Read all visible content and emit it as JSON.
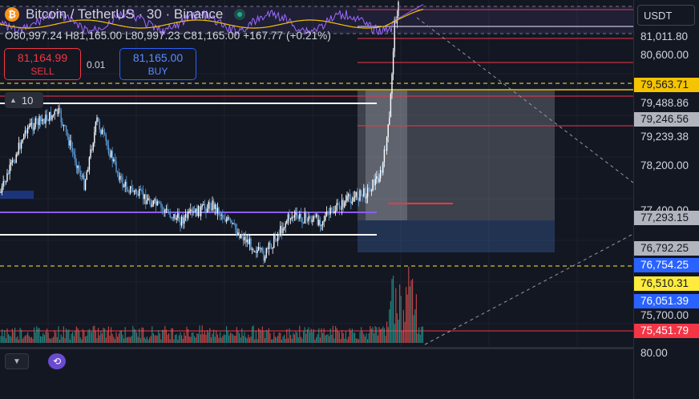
{
  "header": {
    "logo_glyph": "₿",
    "title": "Bitcoin / TetherUS · 30 · Binance",
    "ohlc": {
      "o_label": "O",
      "o": "80,997.24",
      "h_label": "H",
      "h": "81,165.00",
      "l_label": "L",
      "l": "80,997.23",
      "c_label": "C",
      "c": "81,165.00",
      "change": "+167.77 (+0.21%)"
    }
  },
  "trade": {
    "sell_price": "81,164.99",
    "sell_label": "SELL",
    "spread": "0.01",
    "buy_price": "81,165.00",
    "buy_label": "BUY"
  },
  "indicator_pill": {
    "value": "10"
  },
  "currency_selector": "USDT",
  "price_labels": [
    {
      "text": "81,011.80",
      "style": "plain"
    },
    {
      "text": "80,600.00",
      "style": "plain"
    },
    {
      "text": "79,563.71",
      "style": "yellowo"
    },
    {
      "text": "79,488.86",
      "style": "plain"
    },
    {
      "text": "79,246.56",
      "style": "gray"
    },
    {
      "text": "79,239.38",
      "style": "plain"
    },
    {
      "text": "78,200.00",
      "style": "dark"
    },
    {
      "text": "77,400.00",
      "style": "dark"
    },
    {
      "text": "77,293.15",
      "style": "gray"
    },
    {
      "text": "76,792.25",
      "style": "gray"
    },
    {
      "text": "76,754.25",
      "style": "blue"
    },
    {
      "text": "76,510.31",
      "style": "yellow"
    },
    {
      "text": "76,051.39",
      "style": "blue"
    },
    {
      "text": "75,700.00",
      "style": "dark"
    },
    {
      "text": "75,451.79",
      "style": "red"
    }
  ],
  "rsi_axis_label": "80.00",
  "colors": {
    "up": "#ffffff",
    "down": "#5b9bd5",
    "sell": "#f23645",
    "buy": "#2962ff",
    "accent_yellow": "#ffeb3b",
    "purple": "#7b1fa2"
  }
}
